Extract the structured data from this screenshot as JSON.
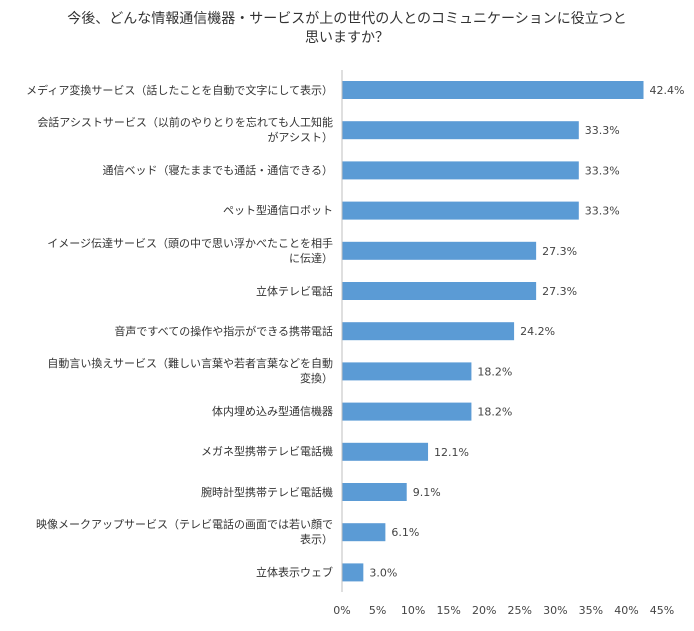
{
  "title": {
    "line1": "今後、どんな情報通信機器・サービスが上の世代の人とのコミュニケーションに役立つと",
    "line2": "思いますか？"
  },
  "chart_data": {
    "type": "bar",
    "orientation": "horizontal",
    "title": "今後、どんな情報通信機器・サービスが上の世代の人とのコミュニケーションに役立つと思いますか？",
    "categories": [
      [
        "メディア変換サービス（話したことを自動で文字にして表示）"
      ],
      [
        "会話アシストサービス（以前のやりとりを忘れても人工知能",
        "がアシスト）"
      ],
      [
        "通信ベッド（寝たままでも通話・通信できる）"
      ],
      [
        "ペット型通信ロボット"
      ],
      [
        "イメージ伝達サービス（頭の中で思い浮かべたことを相手",
        "に伝達）"
      ],
      [
        "立体テレビ電話"
      ],
      [
        "音声ですべての操作や指示ができる携帯電話"
      ],
      [
        "自動言い換えサービス（難しい言葉や若者言葉などを自動",
        "変換）"
      ],
      [
        "体内埋め込み型通信機器"
      ],
      [
        "メガネ型携帯テレビ電話機"
      ],
      [
        "腕時計型携帯テレビ電話機"
      ],
      [
        "映像メークアップサービス（テレビ電話の画面では若い顔で",
        "表示）"
      ],
      [
        "立体表示ウェブ"
      ]
    ],
    "values": [
      42.4,
      33.3,
      33.3,
      33.3,
      27.3,
      27.3,
      24.2,
      18.2,
      18.2,
      12.1,
      9.1,
      6.1,
      3.0
    ],
    "value_labels": [
      "42.4%",
      "33.3%",
      "33.3%",
      "33.3%",
      "27.3%",
      "27.3%",
      "24.2%",
      "18.2%",
      "18.2%",
      "12.1%",
      "9.1%",
      "6.1%",
      "3.0%"
    ],
    "xlim": [
      0,
      45
    ],
    "xticks": [
      "0%",
      "5%",
      "10%",
      "15%",
      "20%",
      "25%",
      "30%",
      "35%",
      "40%",
      "45%"
    ],
    "bar_color": "#5B9BD5",
    "grid": false
  }
}
